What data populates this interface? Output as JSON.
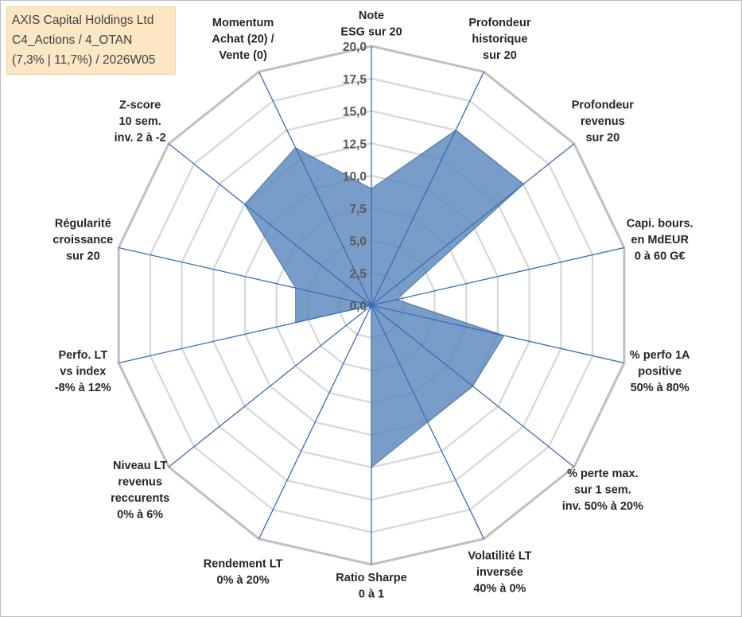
{
  "info_box": {
    "line1": "AXIS Capital Holdings Ltd",
    "line2": "C4_Actions / 4_OTAN",
    "line3": "(7,3% | 11,7%) / 2026W05"
  },
  "colors": {
    "series_fill": "#5b87bd",
    "series_stroke": "#4a76ad",
    "spoke": "#3a6cb4",
    "ring": "#d9d9d9",
    "outer_ring": "#bfbfbf",
    "info_bg": "#fbe7c3"
  },
  "chart_data": {
    "type": "radar",
    "title": "",
    "rmin": 0,
    "rmax": 20,
    "tick_step": 2.5,
    "tick_labels": [
      "0,0",
      "2,5",
      "5,0",
      "7,5",
      "10,0",
      "12,5",
      "15,0",
      "17,5",
      "20,0"
    ],
    "grid": true,
    "categories": [
      [
        "Note",
        "ESG sur 20"
      ],
      [
        "Profondeur",
        "historique",
        "sur 20"
      ],
      [
        "Profondeur",
        "revenus",
        "sur 20"
      ],
      [
        "Capi. bours.",
        "en MdEUR",
        "0 à 60 G€"
      ],
      [
        "% perfo 1A",
        "positive",
        "50% à 80%"
      ],
      [
        "% perte max.",
        "sur 1 sem.",
        "inv. 50% à 20%"
      ],
      [
        "Volatilité LT",
        "inversée",
        "40% à 0%"
      ],
      [
        "Ratio Sharpe",
        "0 à 1"
      ],
      [
        "Rendement LT",
        "0% à 20%"
      ],
      [
        "Niveau LT",
        "revenus",
        "reccurents",
        "0% à 6%"
      ],
      [
        "Perfo. LT",
        "vs index",
        "-8% à 12%"
      ],
      [
        "Régularité",
        "croissance",
        "sur 20"
      ],
      [
        "Z-score",
        "10 sem.",
        "inv. 2 à -2"
      ],
      [
        "Momentum",
        "Achat (20) /",
        "Vente (0)"
      ]
    ],
    "series": [
      {
        "name": "AXIS Capital Holdings Ltd",
        "values": [
          9.0,
          15.0,
          15.0,
          2.0,
          10.5,
          10.0,
          10.0,
          12.5,
          0,
          0,
          6.0,
          6.0,
          12.5,
          13.5
        ]
      }
    ]
  }
}
